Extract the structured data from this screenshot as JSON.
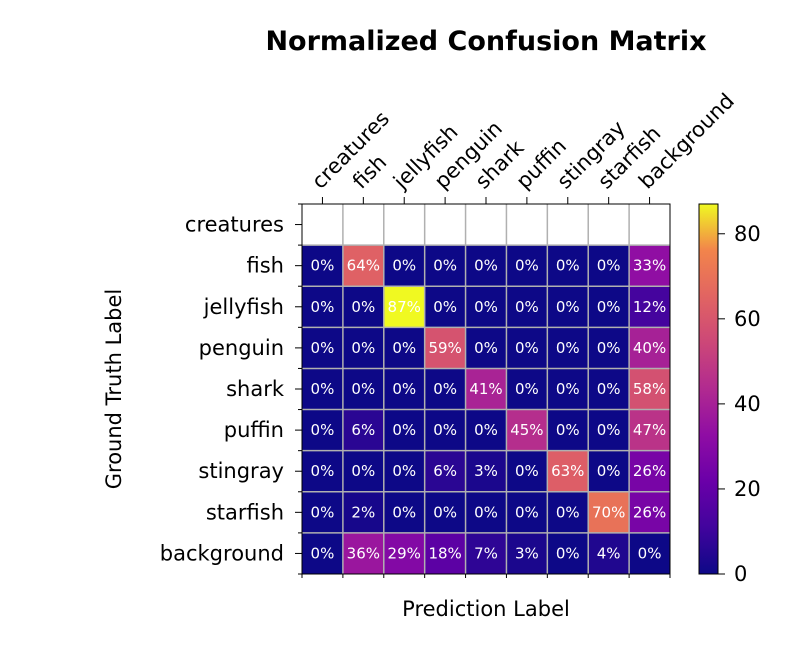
{
  "chart_data": {
    "type": "heatmap",
    "title": "Normalized Confusion Matrix",
    "xlabel": "Prediction Label",
    "ylabel": "Ground Truth Label",
    "x_categories": [
      "creatures",
      "fish",
      "jellyfish",
      "penguin",
      "shark",
      "puffin",
      "stingray",
      "starfish",
      "background"
    ],
    "y_categories": [
      "creatures",
      "fish",
      "jellyfish",
      "penguin",
      "shark",
      "puffin",
      "stingray",
      "starfish",
      "background"
    ],
    "values": [
      [
        null,
        null,
        null,
        null,
        null,
        null,
        null,
        null,
        null
      ],
      [
        0,
        64,
        0,
        0,
        0,
        0,
        0,
        0,
        33
      ],
      [
        0,
        0,
        87,
        0,
        0,
        0,
        0,
        0,
        12
      ],
      [
        0,
        0,
        0,
        59,
        0,
        0,
        0,
        0,
        40
      ],
      [
        0,
        0,
        0,
        0,
        41,
        0,
        0,
        0,
        58
      ],
      [
        0,
        6,
        0,
        0,
        0,
        45,
        0,
        0,
        47
      ],
      [
        0,
        0,
        0,
        6,
        3,
        0,
        63,
        0,
        26
      ],
      [
        0,
        2,
        0,
        0,
        0,
        0,
        0,
        70,
        26
      ],
      [
        0,
        36,
        29,
        18,
        7,
        3,
        0,
        4,
        0
      ]
    ],
    "value_suffix": "%",
    "colormap": "plasma",
    "colorbar": {
      "range": [
        0,
        87
      ],
      "ticks": [
        0,
        20,
        40,
        60,
        80
      ]
    },
    "grid": true
  }
}
